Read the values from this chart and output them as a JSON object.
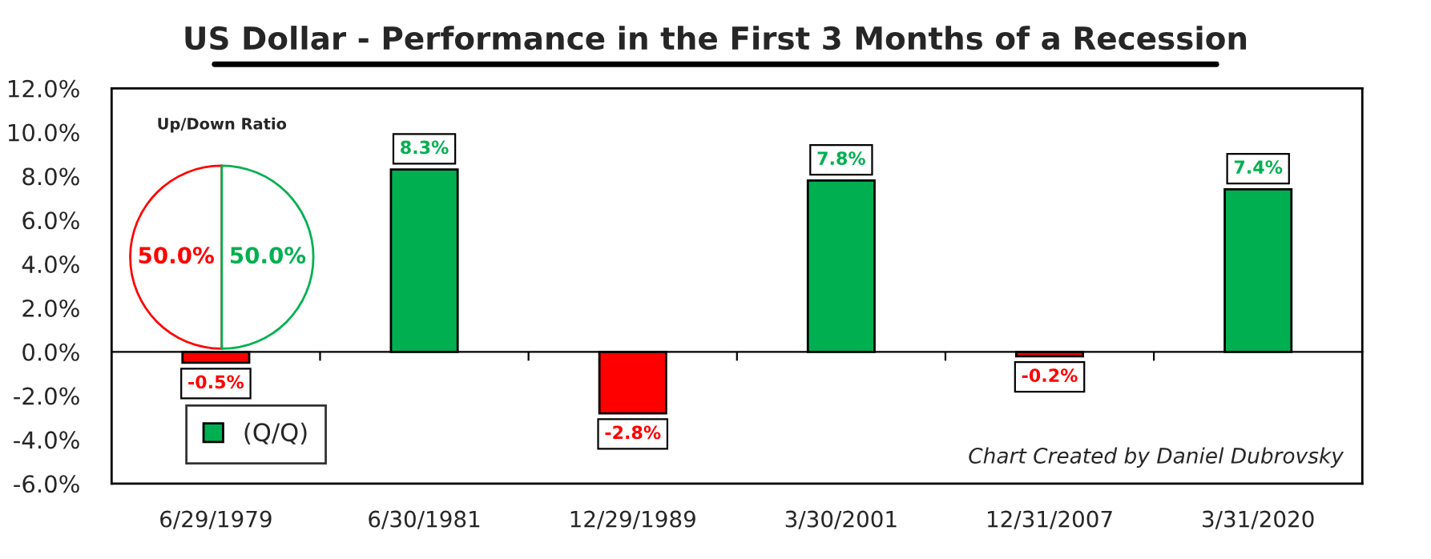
{
  "chart_data": [
    {
      "type": "bar",
      "title": "US Dollar - Performance in the First 3 Months of a Recession",
      "categories": [
        "6/29/1979",
        "6/30/1981",
        "12/29/1989",
        "3/30/2001",
        "12/31/2007",
        "3/31/2020"
      ],
      "series": [
        {
          "name": "(Q/Q)",
          "color": "#00b050",
          "colors": [
            "#ff0000",
            "#00b050",
            "#ff0000",
            "#00b050",
            "#ff0000",
            "#00b050"
          ],
          "values": [
            -0.5,
            8.3,
            -2.8,
            7.8,
            -0.2,
            7.4
          ],
          "value_labels": [
            "-0.5%",
            "8.3%",
            "-2.8%",
            "7.8%",
            "-0.2%",
            "7.4%"
          ]
        }
      ],
      "ylim": [
        -6,
        12
      ],
      "yticks": [
        {
          "value": -6,
          "label": "-6.0%"
        },
        {
          "value": -4,
          "label": "-4.0%"
        },
        {
          "value": -2,
          "label": "-2.0%"
        },
        {
          "value": 0,
          "label": "0.0%"
        },
        {
          "value": 2,
          "label": "2.0%"
        },
        {
          "value": 4,
          "label": "4.0%"
        },
        {
          "value": 6,
          "label": "6.0%"
        },
        {
          "value": 8,
          "label": "8.0%"
        },
        {
          "value": 10,
          "label": "10.0%"
        },
        {
          "value": 12,
          "label": "12.0%"
        }
      ],
      "legend": "bottom left",
      "annotations": [
        "Chart Created by Daniel Dubrovsky"
      ]
    },
    {
      "type": "pie",
      "title": "Up/Down Ratio",
      "categories": [
        null,
        null
      ],
      "values": [
        50.0,
        50.0
      ],
      "colors": [
        "#ff0000",
        "#00b050"
      ],
      "value_labels": [
        "50.0%",
        "50.0%"
      ]
    }
  ]
}
